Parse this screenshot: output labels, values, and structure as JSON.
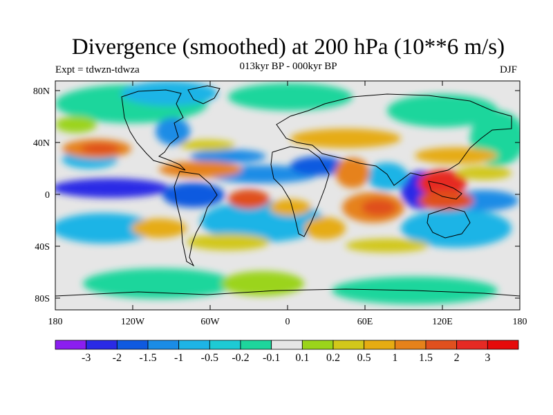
{
  "title": "Divergence (smoothed) at 200 hPa (10**6 m/s)",
  "subtitle": "013kyr BP - 000kyr BP",
  "experiment": "Expt = tdwzn-tdwza",
  "season": "DJF",
  "lat_ticks": [
    "80N",
    "40N",
    "0",
    "40S",
    "80S"
  ],
  "lon_ticks": [
    "180",
    "120W",
    "60W",
    "0",
    "60E",
    "120E",
    "180"
  ],
  "colorbar": {
    "colors": [
      "#8b1ef0",
      "#2a2ae6",
      "#0f5ae0",
      "#1a8ce6",
      "#1eb4e6",
      "#1ecad4",
      "#1ed69c",
      "#e6e6e6",
      "#9bd41a",
      "#d2c81a",
      "#e6ac12",
      "#e6821a",
      "#e0501e",
      "#e62a24",
      "#e60a0a"
    ],
    "labels": [
      "-3",
      "-2",
      "-1.5",
      "-1",
      "-0.5",
      "-0.2",
      "-0.1",
      "0.1",
      "0.2",
      "0.5",
      "1",
      "1.5",
      "2",
      "3"
    ]
  }
}
